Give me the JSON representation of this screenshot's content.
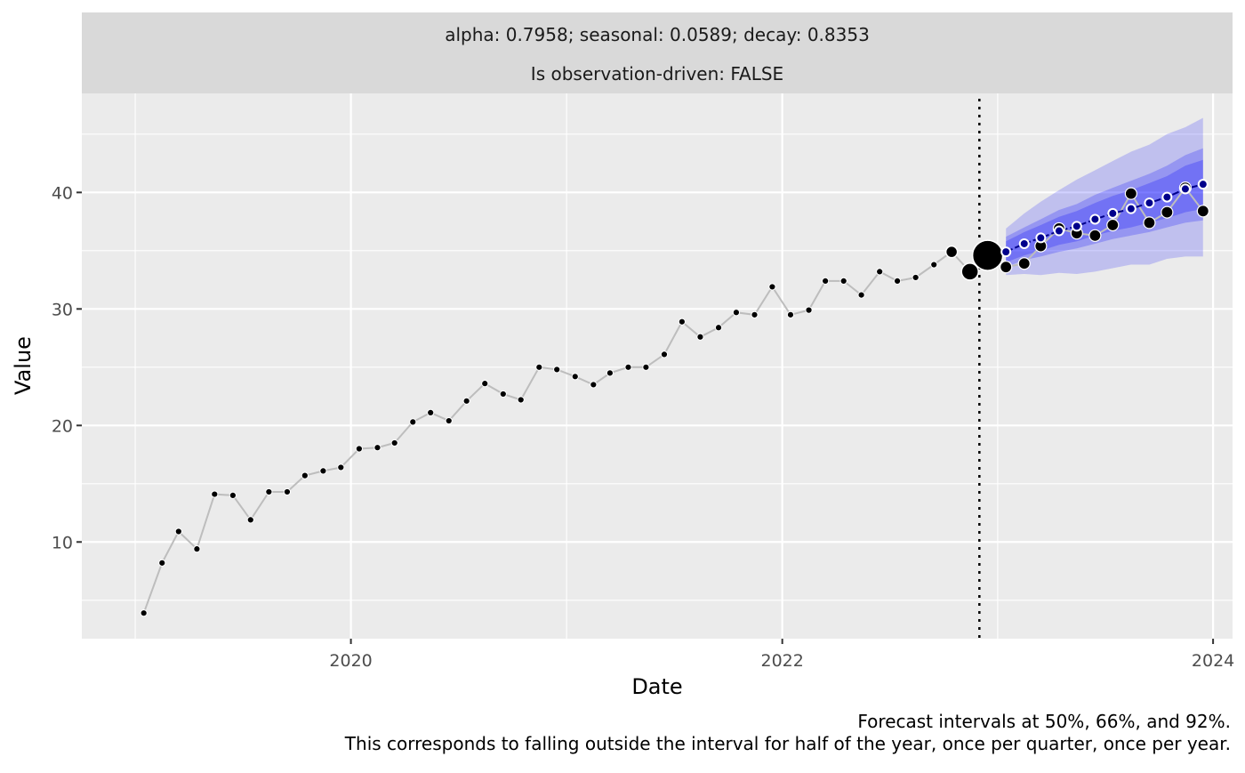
{
  "strip": {
    "line1": "alpha: 0.7958; seasonal: 0.0589; decay: 0.8353",
    "line2": "Is observation-driven: FALSE"
  },
  "caption": {
    "line1": "Forecast intervals at 50%, 66%, and 92%.",
    "line2": "This corresponds to falling outside the interval for half of the year, once per quarter, once per year."
  },
  "colors": {
    "panel_bg": "#ebebeb",
    "strip_bg": "#d9d9d9",
    "grid": "#ffffff",
    "history_line": "#bdbdbd",
    "point": "#000000",
    "forecast_line": "#00008b",
    "interval_fill": "#0000ff"
  },
  "chart_data": {
    "type": "line",
    "xlabel": "Date",
    "ylabel": "Value",
    "x_ticks": [
      "2020",
      "2022",
      "2024"
    ],
    "x_tick_values": [
      "2020-01-01",
      "2022-01-01",
      "2024-01-01"
    ],
    "y_ticks": [
      10,
      20,
      30,
      40
    ],
    "xlim": [
      "2018-10-02",
      "2024-02-03"
    ],
    "ylim": [
      1.7,
      48.5
    ],
    "grid": true,
    "forecast_origin": "2022-12-01",
    "interval_levels": [
      "50%",
      "66%",
      "92%"
    ],
    "history": {
      "dates": [
        "2019-01",
        "2019-02",
        "2019-03",
        "2019-04",
        "2019-05",
        "2019-06",
        "2019-07",
        "2019-08",
        "2019-09",
        "2019-10",
        "2019-11",
        "2019-12",
        "2020-01",
        "2020-02",
        "2020-03",
        "2020-04",
        "2020-05",
        "2020-06",
        "2020-07",
        "2020-08",
        "2020-09",
        "2020-10",
        "2020-11",
        "2020-12",
        "2021-01",
        "2021-02",
        "2021-03",
        "2021-04",
        "2021-05",
        "2021-06",
        "2021-07",
        "2021-08",
        "2021-09",
        "2021-10",
        "2021-11",
        "2021-12",
        "2022-01",
        "2022-02",
        "2022-03",
        "2022-04",
        "2022-05",
        "2022-06",
        "2022-07",
        "2022-08",
        "2022-09",
        "2022-10",
        "2022-11",
        "2022-12"
      ],
      "values": [
        3.9,
        8.2,
        10.9,
        9.4,
        14.1,
        14.0,
        11.9,
        14.3,
        14.3,
        15.7,
        16.1,
        16.4,
        18.0,
        18.1,
        18.5,
        20.3,
        21.1,
        20.4,
        22.1,
        23.6,
        22.7,
        22.2,
        25.0,
        24.8,
        24.2,
        23.5,
        24.5,
        25.0,
        25.0,
        26.1,
        28.9,
        27.6,
        28.4,
        29.7,
        29.5,
        31.9,
        29.5,
        29.9,
        32.4,
        32.4,
        31.2,
        33.2,
        32.4,
        32.7,
        33.8,
        34.9,
        33.2,
        34.6
      ]
    },
    "forecast": {
      "dates": [
        "2023-01",
        "2023-02",
        "2023-03",
        "2023-04",
        "2023-05",
        "2023-06",
        "2023-07",
        "2023-08",
        "2023-09",
        "2023-10",
        "2023-11",
        "2023-12"
      ],
      "point": [
        34.9,
        35.6,
        36.1,
        36.7,
        37.1,
        37.7,
        38.2,
        38.6,
        39.1,
        39.6,
        40.3,
        40.7
      ],
      "lower_50": [
        34.0,
        34.6,
        35.0,
        35.5,
        35.8,
        36.3,
        36.7,
        37.0,
        37.4,
        37.8,
        38.3,
        38.6
      ],
      "upper_50": [
        35.8,
        36.6,
        37.2,
        37.9,
        38.4,
        39.1,
        39.7,
        40.2,
        40.8,
        41.4,
        42.3,
        42.8
      ],
      "lower_66": [
        33.6,
        34.2,
        34.5,
        34.9,
        35.2,
        35.6,
        36.0,
        36.3,
        36.6,
        37.0,
        37.4,
        37.6
      ],
      "upper_66": [
        36.2,
        37.0,
        37.7,
        38.5,
        39.0,
        39.8,
        40.4,
        41.0,
        41.6,
        42.3,
        43.2,
        43.8
      ],
      "lower_92": [
        32.9,
        33.0,
        32.9,
        33.1,
        33.0,
        33.2,
        33.5,
        33.8,
        33.8,
        34.3,
        34.5,
        34.5
      ],
      "upper_92": [
        36.9,
        38.2,
        39.2,
        40.2,
        41.1,
        41.9,
        42.7,
        43.5,
        44.1,
        45.0,
        45.6,
        46.4
      ]
    },
    "actuals": {
      "dates": [
        "2023-01",
        "2023-02",
        "2023-03",
        "2023-04",
        "2023-05",
        "2023-06",
        "2023-07",
        "2023-08",
        "2023-09",
        "2023-10",
        "2023-11",
        "2023-12"
      ],
      "values": [
        33.6,
        33.9,
        35.4,
        36.9,
        36.5,
        36.3,
        37.2,
        39.9,
        37.4,
        38.3,
        40.4,
        38.4
      ]
    }
  }
}
